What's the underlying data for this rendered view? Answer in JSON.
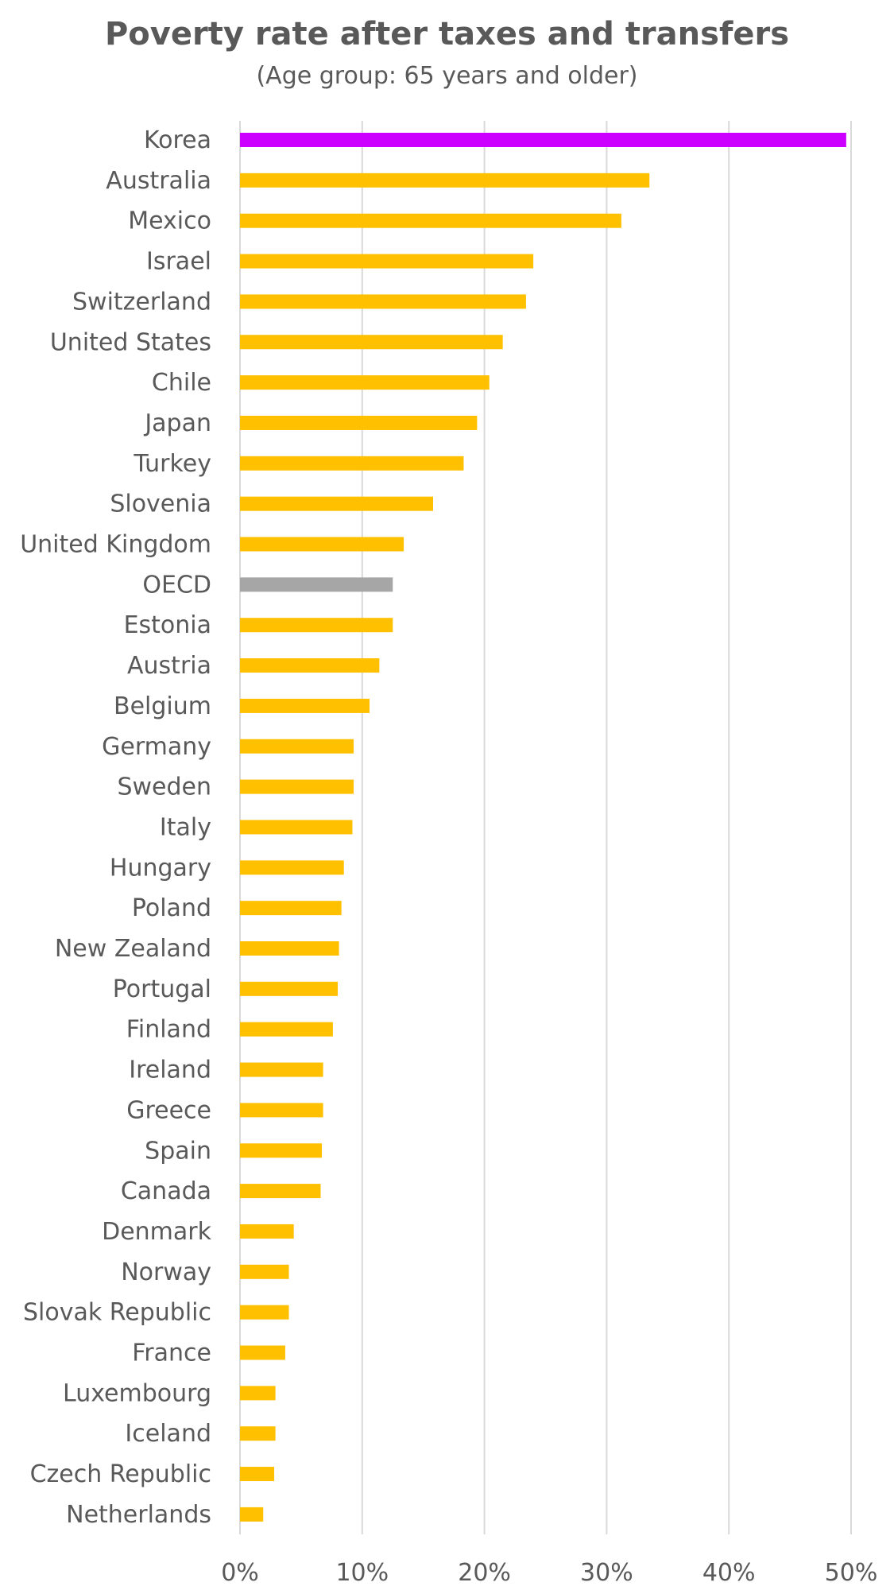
{
  "chart_data": {
    "type": "bar",
    "orientation": "horizontal",
    "title": "Poverty rate after taxes and transfers",
    "subtitle": "(Age group: 65 years and older)",
    "xlabel": "",
    "ylabel": "",
    "xlim": [
      0,
      0.5
    ],
    "x_ticks": [
      0,
      0.1,
      0.2,
      0.3,
      0.4,
      0.5
    ],
    "x_tick_labels": [
      "0%",
      "10%",
      "20%",
      "30%",
      "40%",
      "50%"
    ],
    "grid": true,
    "legend": "none",
    "colors": {
      "default": "#FFC000",
      "highlight": "#CC00FF",
      "reference": "#A6A6A6",
      "grid": "#D9D9D9",
      "text": "#595959"
    },
    "categories": [
      "Korea",
      "Australia",
      "Mexico",
      "Israel",
      "Switzerland",
      "United States",
      "Chile",
      "Japan",
      "Turkey",
      "Slovenia",
      "United Kingdom",
      "OECD",
      "Estonia",
      "Austria",
      "Belgium",
      "Germany",
      "Sweden",
      "Italy",
      "Hungary",
      "Poland",
      "New Zealand",
      "Portugal",
      "Finland",
      "Ireland",
      "Greece",
      "Spain",
      "Canada",
      "Denmark",
      "Norway",
      "Slovak Republic",
      "France",
      "Luxembourg",
      "Iceland",
      "Czech Republic",
      "Netherlands"
    ],
    "values": [
      0.496,
      0.335,
      0.312,
      0.24,
      0.234,
      0.215,
      0.204,
      0.194,
      0.183,
      0.158,
      0.134,
      0.125,
      0.125,
      0.114,
      0.106,
      0.093,
      0.093,
      0.092,
      0.085,
      0.083,
      0.081,
      0.08,
      0.076,
      0.068,
      0.068,
      0.067,
      0.066,
      0.044,
      0.04,
      0.04,
      0.037,
      0.029,
      0.029,
      0.028,
      0.019
    ],
    "bar_color_roles": [
      "highlight",
      "default",
      "default",
      "default",
      "default",
      "default",
      "default",
      "default",
      "default",
      "default",
      "default",
      "reference",
      "default",
      "default",
      "default",
      "default",
      "default",
      "default",
      "default",
      "default",
      "default",
      "default",
      "default",
      "default",
      "default",
      "default",
      "default",
      "default",
      "default",
      "default",
      "default",
      "default",
      "default",
      "default",
      "default"
    ]
  }
}
